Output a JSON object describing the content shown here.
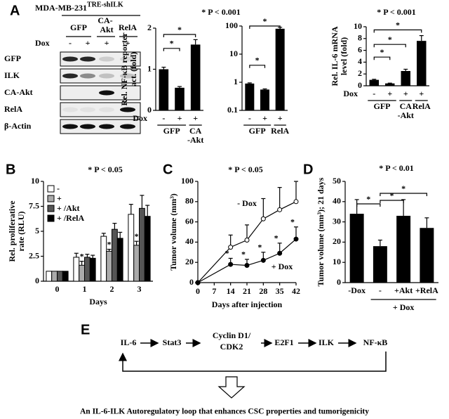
{
  "panel_labels": [
    "A",
    "B",
    "C",
    "D",
    "E"
  ],
  "blot": {
    "cell_line": "MDA-MB-231",
    "construct": "TRE-shILK",
    "groups": [
      "GFP",
      "CA-",
      "Akt",
      "RelA"
    ],
    "dox_label": "Dox",
    "dox_signs": [
      "-",
      "+",
      "+",
      "+"
    ],
    "rows": [
      "GFP",
      "ILK",
      "CA-Akt",
      "RelA",
      "β-Actin"
    ]
  },
  "chart_data": [
    {
      "type": "bar",
      "title": "* P < 0.001",
      "ylabel": [
        "Rel. NF-κB reporter",
        "act. (fold)"
      ],
      "x_label": "Dox",
      "categories": [
        "-",
        "+",
        "+"
      ],
      "groups": [
        [
          "GFP"
        ],
        [
          "CA",
          "-Akt"
        ]
      ],
      "values": [
        1.0,
        0.55,
        1.6
      ],
      "errors": [
        0.05,
        0.03,
        0.12
      ],
      "color": "#000000",
      "ylim": [
        0,
        2
      ],
      "yticks": [
        0,
        1,
        2
      ],
      "sig": [
        "*",
        "*"
      ]
    },
    {
      "type": "bar",
      "log": true,
      "categories": [
        "-",
        "+",
        "+"
      ],
      "groups": [
        [
          "GFP"
        ],
        [
          "RelA"
        ]
      ],
      "values": [
        0.9,
        0.55,
        80
      ],
      "errors": [
        0.05,
        0.03,
        10
      ],
      "color": "#000000",
      "ylim": [
        0.1,
        100
      ],
      "yticks": [
        0.1,
        1,
        10,
        100
      ],
      "sig": [
        "*",
        "*"
      ]
    },
    {
      "type": "bar",
      "title": "* P < 0.001",
      "ylabel": [
        "Rel. IL-6 mRNA",
        "level (fold)"
      ],
      "x_label": "Dox",
      "categories": [
        "-",
        "+",
        "+",
        "+"
      ],
      "groups": [
        [
          "GFP"
        ],
        [
          "CA",
          "-Akt"
        ],
        [
          "RelA"
        ]
      ],
      "values": [
        1.0,
        0.4,
        2.5,
        7.6
      ],
      "errors": [
        0.1,
        0.05,
        0.3,
        0.9
      ],
      "color": "#000000",
      "ylim": [
        0,
        10
      ],
      "yticks": [
        0,
        2,
        4,
        6,
        8,
        10
      ],
      "sig": [
        "*",
        "*",
        "*"
      ]
    },
    {
      "type": "grouped-bar",
      "title": "* P < 0.05",
      "ylabel": [
        "Rel. proliferative",
        "rate (RLU)"
      ],
      "xlabel": "Days",
      "categories": [
        "0",
        "1",
        "2",
        "3"
      ],
      "series": [
        {
          "name": "-",
          "color": "#ffffff",
          "values": [
            1,
            2.4,
            4.5,
            6.7
          ],
          "errors": [
            0,
            0.4,
            0.3,
            1.0
          ]
        },
        {
          "name": "+",
          "color": "#aaaaaa",
          "values": [
            1,
            1.6,
            3.0,
            3.6
          ],
          "errors": [
            0,
            0.4,
            0.2,
            0.4
          ]
        },
        {
          "name": "+ /Akt",
          "color": "#555555",
          "values": [
            1,
            2.4,
            5.2,
            7.3
          ],
          "errors": [
            0,
            0.3,
            0.6,
            1.3
          ]
        },
        {
          "name": "+ /RelA",
          "color": "#000000",
          "values": [
            1,
            2.3,
            4.3,
            6.5
          ],
          "errors": [
            0,
            0.3,
            0.6,
            1.1
          ]
        }
      ],
      "ylim": [
        0,
        10
      ],
      "yticks": [
        0,
        2.5,
        5,
        7.5,
        10
      ],
      "sig": [
        "*",
        "*",
        "*"
      ]
    },
    {
      "type": "line",
      "title": "* P < 0.05",
      "ylabel": [
        "Tumor volume (mm³)"
      ],
      "xlabel": "Days after injection",
      "x": [
        0,
        14,
        21,
        28,
        35,
        42
      ],
      "series": [
        {
          "name": "- Dox",
          "color": "#ffffff",
          "values": [
            0,
            35,
            42,
            63,
            72,
            80
          ],
          "errors": [
            0,
            12,
            15,
            20,
            22,
            20
          ]
        },
        {
          "name": "+ Dox",
          "color": "#000000",
          "values": [
            0,
            18,
            17,
            22,
            29,
            43
          ],
          "errors": [
            0,
            6,
            6,
            8,
            10,
            12
          ]
        }
      ],
      "xlim": [
        0,
        42
      ],
      "xticks": [
        0,
        7,
        14,
        21,
        28,
        35,
        42
      ],
      "ylim": [
        0,
        100
      ],
      "yticks": [
        0,
        20,
        40,
        60,
        80,
        100
      ],
      "sig": [
        "*",
        "*",
        "*",
        "*",
        "*"
      ]
    },
    {
      "type": "bar",
      "title": "* P < 0.01",
      "ylabel": [
        "Tumor volume (mm³); 21 days"
      ],
      "group_label": "+ Dox",
      "categories": [
        "-Dox",
        "-",
        "+Akt",
        "+RelA"
      ],
      "values": [
        34,
        18,
        33,
        27
      ],
      "errors": [
        7,
        3,
        8,
        5
      ],
      "color": "#000000",
      "ylim": [
        0,
        50
      ],
      "yticks": [
        0,
        10,
        20,
        30,
        40,
        50
      ],
      "sig": [
        "*",
        "*",
        "*"
      ]
    }
  ],
  "diagram": {
    "nodes": [
      "IL-6",
      "Stat3",
      "Cyclin D1/",
      "CDK2",
      "E2F1",
      "ILK",
      "NF-κB"
    ],
    "conclusion": "An IL-6-ILK Autoregulatory loop that enhances CSC properties and tumorigenicity"
  }
}
